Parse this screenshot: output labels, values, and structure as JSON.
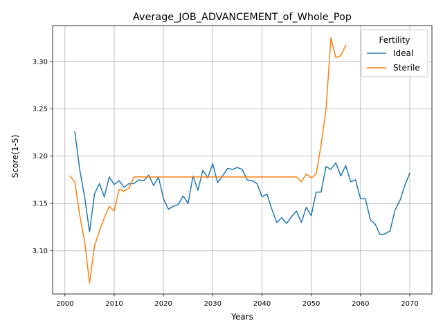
{
  "chart_data": {
    "type": "line",
    "title": "Average_JOB_ADVANCEMENT_of_Whole_Pop",
    "xlabel": "Years",
    "ylabel": "Score(1-5)",
    "xlim": [
      1997.5,
      2074.5
    ],
    "ylim": [
      3.0545,
      3.3378
    ],
    "xticks": [
      2000,
      2010,
      2020,
      2030,
      2040,
      2050,
      2060,
      2070
    ],
    "yticks": [
      3.1,
      3.15,
      3.2,
      3.25,
      3.3
    ],
    "ytick_labels": [
      "3.10",
      "3.15",
      "3.20",
      "3.25",
      "3.30"
    ],
    "grid": true,
    "legend": {
      "title": "Fertility",
      "placement": "top-right"
    },
    "series": [
      {
        "name": "Ideal",
        "color": "#1f77b4",
        "x": [
          2002,
          2003,
          2004,
          2005,
          2006,
          2007,
          2008,
          2009,
          2010,
          2011,
          2012,
          2013,
          2014,
          2015,
          2016,
          2017,
          2018,
          2019,
          2020,
          2021,
          2022,
          2023,
          2024,
          2025,
          2026,
          2027,
          2028,
          2029,
          2030,
          2031,
          2032,
          2033,
          2034,
          2035,
          2036,
          2037,
          2038,
          2039,
          2040,
          2041,
          2042,
          2043,
          2044,
          2045,
          2046,
          2047,
          2048,
          2049,
          2050,
          2051,
          2052,
          2053,
          2054,
          2055,
          2056,
          2057,
          2058,
          2059,
          2060,
          2061,
          2062,
          2063,
          2064,
          2065,
          2066,
          2067,
          2068,
          2069,
          2070
        ],
        "y": [
          3.226,
          3.186,
          3.157,
          3.12,
          3.16,
          3.171,
          3.157,
          3.178,
          3.17,
          3.174,
          3.167,
          3.171,
          3.171,
          3.175,
          3.174,
          3.18,
          3.169,
          3.178,
          3.155,
          3.144,
          3.147,
          3.149,
          3.158,
          3.15,
          3.179,
          3.164,
          3.185,
          3.177,
          3.192,
          3.172,
          3.179,
          3.187,
          3.186,
          3.188,
          3.186,
          3.175,
          3.174,
          3.171,
          3.157,
          3.16,
          3.144,
          3.13,
          3.135,
          3.129,
          3.136,
          3.142,
          3.13,
          3.146,
          3.137,
          3.162,
          3.162,
          3.189,
          3.186,
          3.193,
          3.179,
          3.19,
          3.173,
          3.175,
          3.155,
          3.155,
          3.133,
          3.128,
          3.117,
          3.118,
          3.121,
          3.143,
          3.153,
          3.169,
          3.182
        ]
      },
      {
        "name": "Sterile",
        "color": "#ff7f0e",
        "x": [
          2001,
          2002,
          2003,
          2004,
          2005,
          2006,
          2007,
          2008,
          2009,
          2010,
          2011,
          2012,
          2013,
          2014,
          2015,
          2016,
          2017,
          2018,
          2019,
          2020,
          2021,
          2022,
          2023,
          2024,
          2025,
          2026,
          2027,
          2028,
          2029,
          2030,
          2031,
          2032,
          2033,
          2034,
          2035,
          2036,
          2037,
          2038,
          2039,
          2040,
          2041,
          2042,
          2043,
          2044,
          2045,
          2046,
          2047,
          2048,
          2049,
          2050,
          2051,
          2052,
          2053,
          2054,
          2055,
          2056,
          2057
        ],
        "y": [
          3.179,
          3.173,
          3.138,
          3.11,
          3.066,
          3.105,
          3.121,
          3.135,
          3.147,
          3.142,
          3.165,
          3.163,
          3.166,
          3.178,
          3.178,
          3.178,
          3.178,
          3.178,
          3.178,
          3.178,
          3.178,
          3.178,
          3.178,
          3.178,
          3.178,
          3.178,
          3.178,
          3.178,
          3.178,
          3.178,
          3.178,
          3.178,
          3.178,
          3.178,
          3.178,
          3.178,
          3.178,
          3.178,
          3.178,
          3.178,
          3.178,
          3.178,
          3.178,
          3.178,
          3.178,
          3.178,
          3.178,
          3.173,
          3.181,
          3.177,
          3.181,
          3.212,
          3.249,
          3.325,
          3.304,
          3.306,
          3.317
        ]
      }
    ]
  }
}
